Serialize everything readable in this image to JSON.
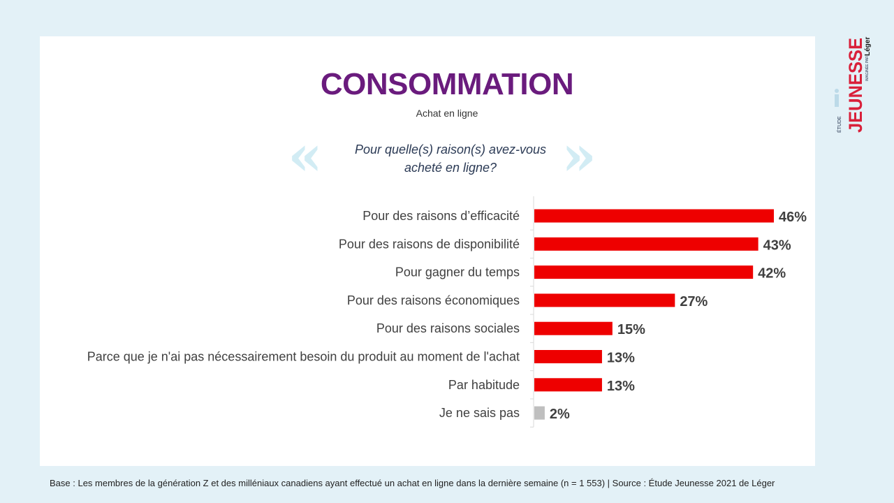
{
  "header": {
    "title": "CONSOMMATION",
    "subtitle": "Achat en ligne",
    "question": "Pour quelle(s) raison(s) avez-vous acheté en ligne?"
  },
  "chart_data": {
    "type": "bar",
    "orientation": "horizontal",
    "categories": [
      "Pour des raisons d’efficacité",
      "Pour des raisons de disponibilité",
      "Pour gagner du temps",
      "Pour des raisons économiques",
      "Pour des raisons sociales",
      "Parce que je n'ai pas nécessairement besoin du produit au moment de l'achat",
      "Par habitude",
      "Je ne sais pas"
    ],
    "values": [
      46,
      43,
      42,
      27,
      15,
      13,
      13,
      2
    ],
    "value_labels": [
      "46%",
      "43%",
      "42%",
      "27%",
      "15%",
      "13%",
      "13%",
      "2%"
    ],
    "bar_colors": [
      "#ee0000",
      "#ee0000",
      "#ee0000",
      "#ee0000",
      "#ee0000",
      "#ee0000",
      "#ee0000",
      "#bfbfbf"
    ],
    "xlim": [
      0,
      100
    ],
    "grid": false
  },
  "logo": {
    "line1": "ÉTUDE",
    "line2": "JEUNESSE",
    "line3": "IMAGINÉE PAR",
    "brand": "Léger"
  },
  "footnote": "Base : Les membres de la génération Z et des milléniaux canadiens ayant effectué un achat en ligne dans la dernière semaine (n = 1 553) | Source : Étude Jeunesse 2021 de Léger",
  "colors": {
    "background": "#e3f1f7",
    "title": "#6a1b7d",
    "accent": "#ee0000",
    "muted": "#bfbfbf"
  }
}
